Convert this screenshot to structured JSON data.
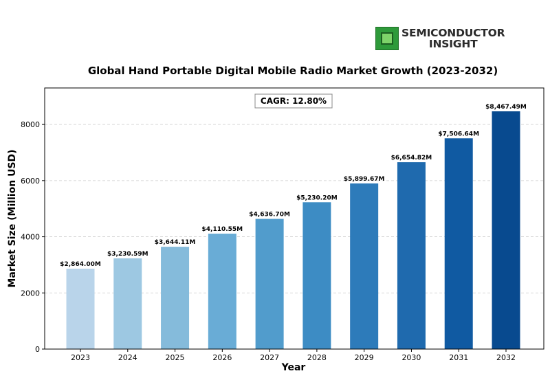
{
  "logo": {
    "line1": "SEMICONDUCTOR",
    "line2": "INSIGHT"
  },
  "chart_data": {
    "type": "bar",
    "title": "Global Hand Portable Digital Mobile Radio Market Growth (2023-2032)",
    "xlabel": "Year",
    "ylabel": "Market Size (Million USD)",
    "categories": [
      "2023",
      "2024",
      "2025",
      "2026",
      "2027",
      "2028",
      "2029",
      "2030",
      "2031",
      "2032"
    ],
    "values": [
      2864.0,
      3230.59,
      3644.11,
      4110.55,
      4636.7,
      5230.2,
      5899.67,
      6654.82,
      7506.64,
      8467.49
    ],
    "data_labels": [
      "$2,864.00M",
      "$3,230.59M",
      "$3,644.11M",
      "$4,110.55M",
      "$4,636.70M",
      "$5,230.20M",
      "$5,899.67M",
      "$6,654.82M",
      "$7,506.64M",
      "$8,467.49M"
    ],
    "bar_colors": [
      "#b9d4ea",
      "#9dc8e2",
      "#85bbdb",
      "#69acd6",
      "#519ccc",
      "#3d8cc4",
      "#2d7bba",
      "#1f6aae",
      "#105aa2",
      "#084a8f"
    ],
    "ylim": [
      0,
      9300
    ],
    "yticks": [
      0,
      2000,
      4000,
      6000,
      8000
    ],
    "ytick_labels": [
      "0",
      "2000",
      "4000",
      "6000",
      "8000"
    ],
    "grid": "horizontal dashed",
    "annotation": "CAGR: 12.80%"
  }
}
